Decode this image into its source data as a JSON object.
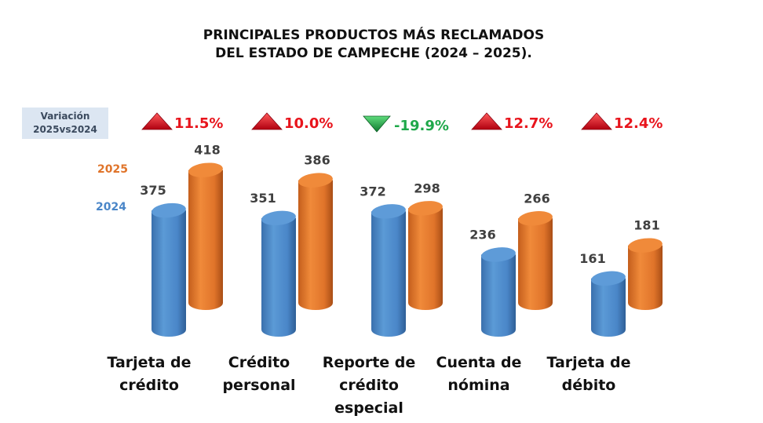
{
  "header": {
    "title_line1": "PRINCIPALES PRODUCTOS MÁS RECLAMADOS",
    "title_line2": "DEL ESTADO DE CAMPECHE (2024 – 2025)."
  },
  "variation_box": {
    "line1": "Variación",
    "line2": "2025vs2024"
  },
  "chart_data": {
    "type": "bar",
    "title": "PRINCIPALES PRODUCTOS MÁS RECLAMADOS DEL ESTADO DE CAMPECHE (2024 – 2025).",
    "xlabel": "",
    "ylabel": "",
    "grid": false,
    "legend_position": "left",
    "categories": [
      [
        "Tarjeta de",
        "crédito"
      ],
      [
        "Crédito",
        "personal"
      ],
      [
        "Reporte de",
        "crédito",
        "especial"
      ],
      [
        "Cuenta de",
        "nómina"
      ],
      [
        "Tarjeta de",
        "débito"
      ]
    ],
    "series": [
      {
        "name": "2024",
        "color": "#4a86c8",
        "values": [
          375,
          351,
          372,
          236,
          161
        ]
      },
      {
        "name": "2025",
        "color": "#e0742a",
        "values": [
          418,
          386,
          298,
          266,
          181
        ]
      }
    ],
    "variation": [
      {
        "label": "11.5%",
        "direction": "up"
      },
      {
        "label": "10.0%",
        "direction": "up"
      },
      {
        "label": "-19.9%",
        "direction": "down"
      },
      {
        "label": "12.7%",
        "direction": "up"
      },
      {
        "label": "12.4%",
        "direction": "up"
      }
    ],
    "colors": {
      "up": "#e8141c",
      "down": "#1fa84a"
    }
  }
}
